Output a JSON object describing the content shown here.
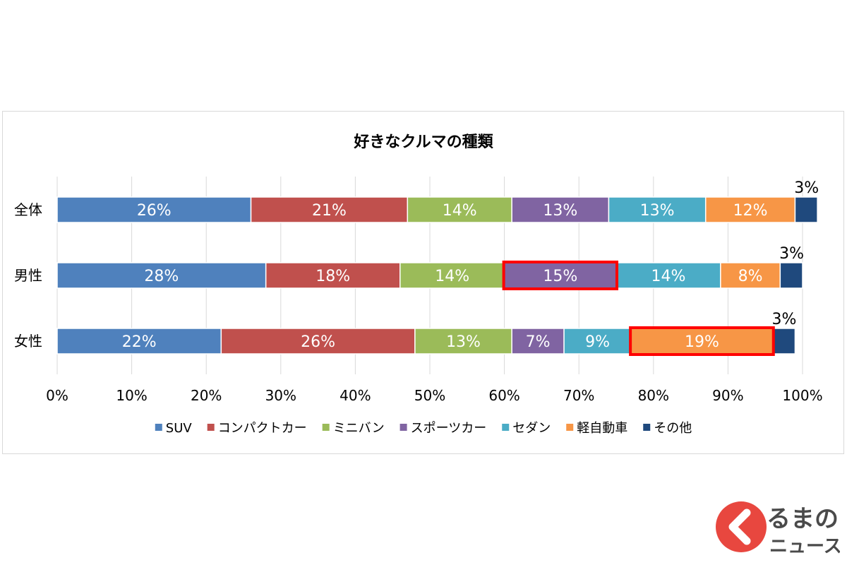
{
  "chart_data": {
    "type": "bar",
    "orientation": "horizontal",
    "stacked": true,
    "title": "好きなクルマの種類",
    "categories": [
      "全体",
      "男性",
      "女性"
    ],
    "x_ticks": [
      "0%",
      "10%",
      "20%",
      "30%",
      "40%",
      "50%",
      "60%",
      "70%",
      "80%",
      "90%",
      "100%"
    ],
    "xlim": [
      0,
      100
    ],
    "grid": true,
    "legend_position": "bottom",
    "series": [
      {
        "name": "SUV",
        "values": [
          26,
          28,
          22
        ],
        "labels": [
          "26%",
          "28%",
          "22%"
        ],
        "color": "#4f81bd"
      },
      {
        "name": "コンパクトカー",
        "values": [
          21,
          18,
          26
        ],
        "labels": [
          "21%",
          "18%",
          "26%"
        ],
        "color": "#c0504d"
      },
      {
        "name": "ミニバン",
        "values": [
          14,
          14,
          13
        ],
        "labels": [
          "14%",
          "14%",
          "13%"
        ],
        "color": "#9bbb59"
      },
      {
        "name": "スポーツカー",
        "values": [
          13,
          15,
          7
        ],
        "labels": [
          "13%",
          "15%",
          "7%"
        ],
        "color": "#8064a2"
      },
      {
        "name": "セダン",
        "values": [
          13,
          14,
          9
        ],
        "labels": [
          "13%",
          "14%",
          "9%"
        ],
        "color": "#4bacc6"
      },
      {
        "name": "軽自動車",
        "values": [
          12,
          8,
          19
        ],
        "labels": [
          "12%",
          "8%",
          "19%"
        ],
        "color": "#f79646"
      },
      {
        "name": "その他",
        "values": [
          3,
          3,
          3
        ],
        "labels": [
          "3%",
          "3%",
          "3%"
        ],
        "color": "#1f497d"
      }
    ],
    "highlights": [
      {
        "category": "男性",
        "series": "スポーツカー",
        "color": "#ff0000"
      },
      {
        "category": "女性",
        "series": "軽自動車",
        "color": "#ff0000"
      }
    ]
  },
  "logo": {
    "line1": "るまの",
    "line2": "ニュース",
    "accent": "#e8473f"
  }
}
